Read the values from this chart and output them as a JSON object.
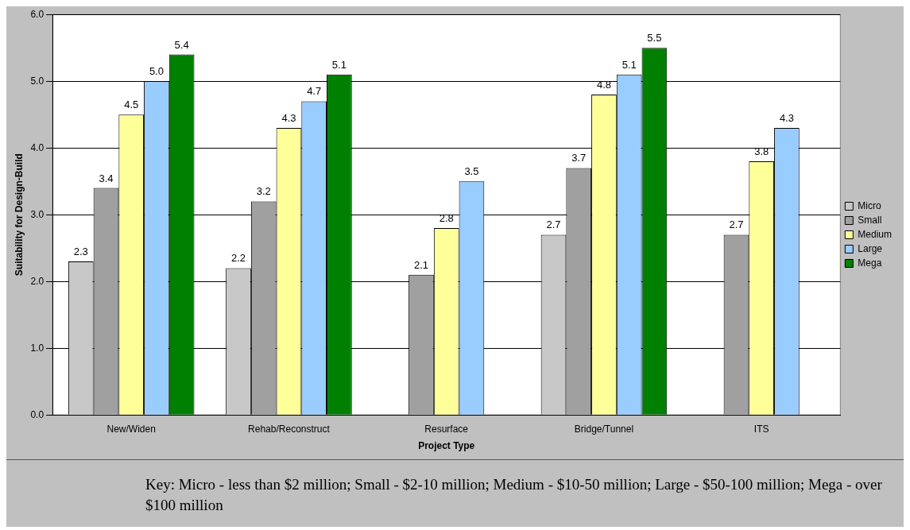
{
  "chart_data": {
    "type": "bar",
    "xlabel": "Project Type",
    "ylabel": "Suitability for Design-Build",
    "categories": [
      "New/Widen",
      "Rehab/Reconstruct",
      "Resurface",
      "Bridge/Tunnel",
      "ITS"
    ],
    "series": [
      {
        "name": "Micro",
        "color": "#c8c8c8",
        "values": [
          2.3,
          2.2,
          null,
          2.7,
          null
        ],
        "value_labels": [
          "2.3",
          "2.2",
          null,
          "2.7",
          null
        ]
      },
      {
        "name": "Small",
        "color": "#a0a0a0",
        "values": [
          3.4,
          3.2,
          2.1,
          3.7,
          2.7
        ],
        "value_labels": [
          "3.4",
          "3.2",
          "2.1",
          "3.7",
          "2.7"
        ]
      },
      {
        "name": "Medium",
        "color": "#ffff99",
        "values": [
          4.5,
          4.3,
          2.8,
          4.8,
          3.8
        ],
        "value_labels": [
          "4.5",
          "4.3",
          "2.8",
          "4.8",
          "3.8"
        ]
      },
      {
        "name": "Large",
        "color": "#99ccff",
        "values": [
          5.0,
          4.7,
          3.5,
          5.1,
          4.3
        ],
        "value_labels": [
          "5.0",
          "4.7",
          "3.5",
          "5.1",
          "4.3"
        ]
      },
      {
        "name": "Mega",
        "color": "#008000",
        "values": [
          5.4,
          5.1,
          null,
          5.5,
          null
        ],
        "value_labels": [
          "5.4",
          "5.1",
          null,
          "5.5",
          null
        ]
      }
    ],
    "ylim": [
      0,
      6
    ],
    "yticks": [
      {
        "value": 0,
        "label": "0.0"
      },
      {
        "value": 1,
        "label": "1.0"
      },
      {
        "value": 2,
        "label": "2.0"
      },
      {
        "value": 3,
        "label": "3.0"
      },
      {
        "value": 4,
        "label": "4.0"
      },
      {
        "value": 5,
        "label": "5.0"
      },
      {
        "value": 6,
        "label": "6.0"
      }
    ],
    "grid": "y",
    "legend": "right",
    "annotations": [
      "Key: Micro - less than $2 million; Small - $2-10 million; Medium - $10-50 million; Large - $50-100 million; Mega - over $100 million"
    ]
  }
}
